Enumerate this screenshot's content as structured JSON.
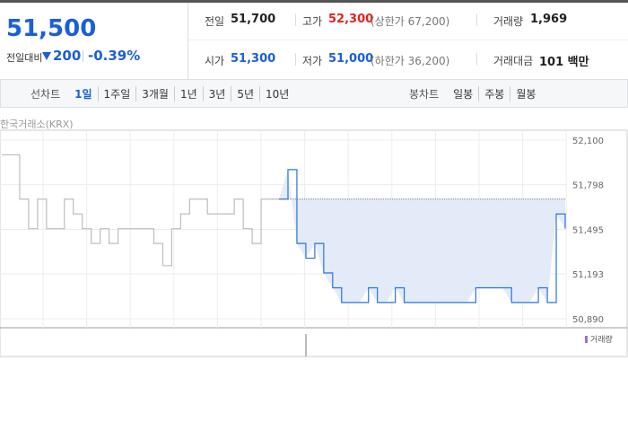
{
  "quote": {
    "price": "51,500",
    "change_label": "전일대비",
    "change": "200",
    "change_rate": "-0.39%"
  },
  "info": [
    {
      "label": "전일",
      "value": "51,700"
    },
    {
      "label": "고가",
      "value": "52,300",
      "note": "(상한가 67,200)"
    },
    {
      "label": "거래량",
      "value": "1,969"
    },
    {
      "label": "시가",
      "value": "51,300"
    },
    {
      "label": "저가",
      "value": "51,000",
      "note": "(하한가 36,200)"
    },
    {
      "label": "거래대금",
      "value": "101 백만"
    }
  ],
  "tabs": {
    "line_label": "선차트",
    "line": [
      "1일",
      "1주일",
      "3개월",
      "1년",
      "3년",
      "5년",
      "10년"
    ],
    "candle_label": "봉차트",
    "candle": [
      "일봉",
      "주봉",
      "월봉"
    ]
  },
  "chart_data": {
    "type": "line",
    "source": "한국거래소(KRX)",
    "ylim": [
      50890,
      52100
    ],
    "yticks": [
      {
        "value": 52100,
        "label": "52,100"
      },
      {
        "value": 51798,
        "label": "51,798"
      },
      {
        "value": 51495,
        "label": "51,495"
      },
      {
        "value": 51193,
        "label": "51,193"
      },
      {
        "value": 50890,
        "label": "50,890"
      }
    ],
    "reference": 51700,
    "grid": true,
    "series": [
      {
        "color": "#bdbdbd",
        "values": [
          52000,
          52000,
          51700,
          51500,
          51700,
          51500,
          51500,
          51700,
          51600,
          51500,
          51400,
          51500,
          51400,
          51500,
          51500,
          51500,
          51500,
          51400,
          51250,
          51500,
          51600,
          51700,
          51700,
          51600,
          51600,
          51600,
          51700,
          51500,
          51400,
          51700,
          51700,
          51700,
          null,
          null,
          null,
          null,
          null,
          null,
          null,
          null,
          null,
          null,
          null,
          null,
          null,
          null,
          null,
          null,
          null,
          null,
          null,
          null,
          null,
          null,
          null,
          null,
          null,
          null,
          null,
          null,
          null,
          null,
          null,
          null
        ]
      },
      {
        "color": "#2a72de",
        "fill": "#e3ebf8",
        "values": [
          null,
          null,
          null,
          null,
          null,
          null,
          null,
          null,
          null,
          null,
          null,
          null,
          null,
          null,
          null,
          null,
          null,
          null,
          null,
          null,
          null,
          null,
          null,
          null,
          null,
          null,
          null,
          null,
          null,
          null,
          null,
          51700,
          51900,
          51400,
          51300,
          51400,
          51200,
          51100,
          51000,
          51000,
          51000,
          51100,
          51000,
          51000,
          51100,
          51000,
          51000,
          51000,
          51000,
          51000,
          51000,
          51000,
          51000,
          51100,
          51100,
          51100,
          51100,
          51000,
          51000,
          51000,
          51100,
          51000,
          51600,
          51500
        ]
      }
    ],
    "volume_legend": "거래량"
  }
}
